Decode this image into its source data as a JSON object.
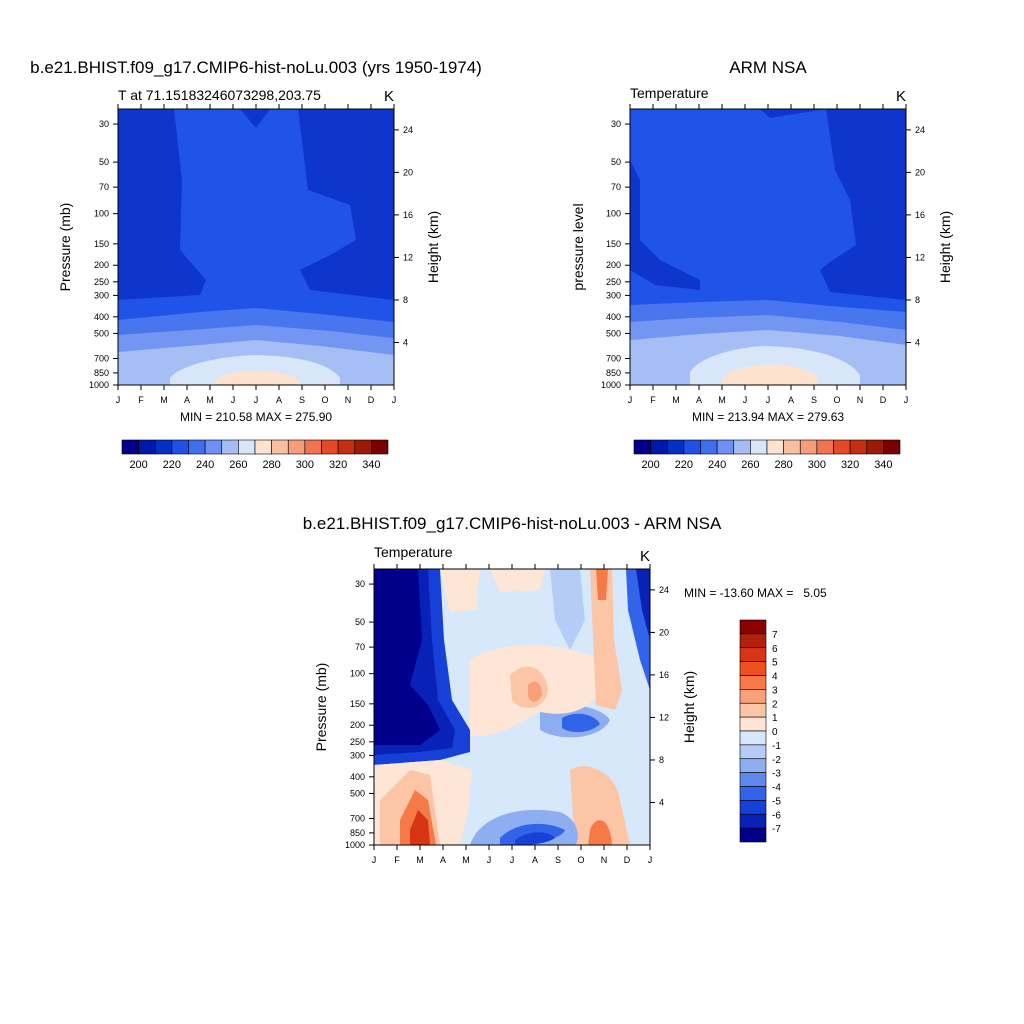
{
  "chart_data": [
    {
      "type": "contour",
      "title": "b.e21.BHIST.f09_g17.CMIP6-hist-noLu.003 (yrs 1950-1974)",
      "left_label": "T at 71.15183246073298,203.75",
      "right_label": "K",
      "ylabel": "Pressure (mb)",
      "y2label": "Height (km)",
      "x_ticks": [
        "J",
        "F",
        "M",
        "A",
        "M",
        "J",
        "J",
        "A",
        "S",
        "O",
        "N",
        "D",
        "J"
      ],
      "y_ticks": [
        "30",
        "50",
        "70",
        "100",
        "150",
        "200",
        "250",
        "300",
        "400",
        "500",
        "700",
        "850",
        "1000"
      ],
      "y2_ticks": [
        "24",
        "20",
        "16",
        "12",
        "8",
        "4"
      ],
      "stats": "MIN = 210.58 MAX = 275.90",
      "min": 210.58,
      "max": 275.9,
      "colorbar_labels": [
        "200",
        "220",
        "240",
        "260",
        "280",
        "300",
        "320",
        "340"
      ],
      "colorbar_colors": [
        "#00008b",
        "#0018a8",
        "#0030c8",
        "#1f50e8",
        "#3f6ef0",
        "#6f90f2",
        "#a6bcf4",
        "#d8e6fa",
        "#fde2cf",
        "#f8bfa0",
        "#f59c78",
        "#f1734f",
        "#e54a26",
        "#c82d10",
        "#9e1a08",
        "#7a0000"
      ],
      "contour_bands": [
        {
          "level": 210,
          "color": "#0f36cc"
        },
        {
          "level": 220,
          "color": "#2054e8"
        },
        {
          "level": 230,
          "color": "#4776ee"
        },
        {
          "level": 240,
          "color": "#7396f2"
        },
        {
          "level": 250,
          "color": "#a6bef6"
        },
        {
          "level": 260,
          "color": "#d8e6fa"
        },
        {
          "level": 270,
          "color": "#fde2cf"
        }
      ]
    },
    {
      "type": "contour",
      "title": "ARM NSA",
      "left_label": "Temperature",
      "right_label": "K",
      "ylabel": "pressure level",
      "y2label": "Height (km)",
      "x_ticks": [
        "J",
        "F",
        "M",
        "A",
        "M",
        "J",
        "J",
        "A",
        "S",
        "O",
        "N",
        "D",
        "J"
      ],
      "y_ticks": [
        "30",
        "50",
        "70",
        "100",
        "150",
        "200",
        "250",
        "300",
        "400",
        "500",
        "700",
        "850",
        "1000"
      ],
      "y2_ticks": [
        "24",
        "20",
        "16",
        "12",
        "8",
        "4"
      ],
      "stats": "MIN = 213.94 MAX = 279.63",
      "min": 213.94,
      "max": 279.63,
      "colorbar_labels": [
        "200",
        "220",
        "240",
        "260",
        "280",
        "300",
        "320",
        "340"
      ],
      "colorbar_colors": [
        "#00008b",
        "#0018a8",
        "#0030c8",
        "#1f50e8",
        "#3f6ef0",
        "#6f90f2",
        "#a6bcf4",
        "#d8e6fa",
        "#fde2cf",
        "#f8bfa0",
        "#f59c78",
        "#f1734f",
        "#e54a26",
        "#c82d10",
        "#9e1a08",
        "#7a0000"
      ],
      "contour_bands": [
        {
          "level": 210,
          "color": "#0f36cc"
        },
        {
          "level": 220,
          "color": "#2054e8"
        },
        {
          "level": 230,
          "color": "#4776ee"
        },
        {
          "level": 240,
          "color": "#7396f2"
        },
        {
          "level": 250,
          "color": "#a6bef6"
        },
        {
          "level": 260,
          "color": "#d8e6fa"
        },
        {
          "level": 270,
          "color": "#fde2cf"
        }
      ]
    },
    {
      "type": "contour",
      "title": "b.e21.BHIST.f09_g17.CMIP6-hist-noLu.003 - ARM NSA",
      "left_label": "Temperature",
      "right_label": "K",
      "ylabel": "Pressure (mb)",
      "y2label": "Height (km)",
      "x_ticks": [
        "J",
        "F",
        "M",
        "A",
        "M",
        "J",
        "J",
        "A",
        "S",
        "O",
        "N",
        "D",
        "J"
      ],
      "y_ticks": [
        "30",
        "50",
        "70",
        "100",
        "150",
        "200",
        "250",
        "300",
        "400",
        "500",
        "700",
        "850",
        "1000"
      ],
      "y2_ticks": [
        "24",
        "20",
        "16",
        "12",
        "8",
        "4"
      ],
      "stats": "MIN = -13.60 MAX =   5.05",
      "min": -13.6,
      "max": 5.05,
      "colorbar_labels": [
        "7",
        "6",
        "5",
        "4",
        "3",
        "2",
        "1",
        "0",
        "-1",
        "-2",
        "-3",
        "-4",
        "-5",
        "-6",
        "-7"
      ],
      "colorbar_colors": [
        "#8b0000",
        "#b0200c",
        "#d93414",
        "#f0501e",
        "#f57a48",
        "#f8a07a",
        "#fbc5a6",
        "#fde6d6",
        "#d8e8fb",
        "#b4ccf6",
        "#8eaef2",
        "#5f88ee",
        "#3264ea",
        "#1640d8",
        "#0822b8",
        "#00008b"
      ]
    }
  ]
}
